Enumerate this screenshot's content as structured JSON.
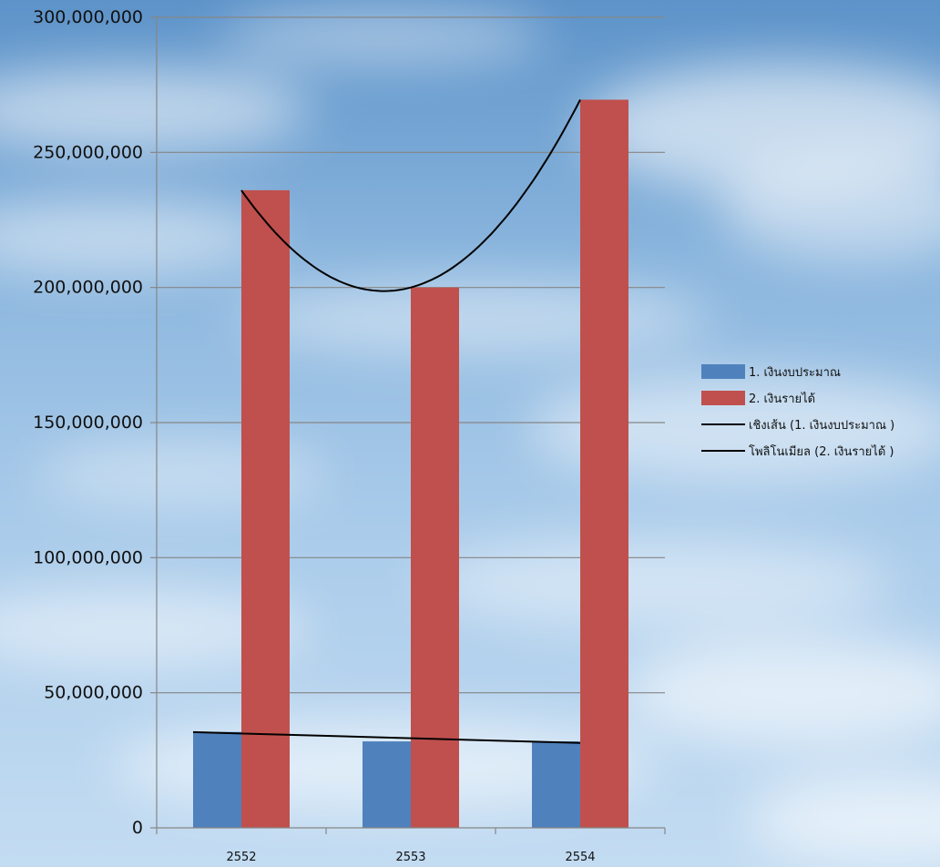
{
  "colors": {
    "series1": "#4f81bd",
    "series2": "#c0504d",
    "trendline": "#000000",
    "grid": "#868686"
  },
  "chart_data": {
    "type": "bar",
    "categories": [
      "2552",
      "2553",
      "2554"
    ],
    "series": [
      {
        "name": "1. เงินงบประมาณ",
        "values": [
          35500000,
          32000000,
          32000000
        ]
      },
      {
        "name": "2. เงินรายได้",
        "values": [
          236000000,
          200000000,
          269500000
        ]
      }
    ],
    "trendlines": [
      {
        "name": "เชิงเส้น (1. เงินงบประมาณ )",
        "kind": "linear",
        "of_series": 0
      },
      {
        "name": "โพลิโนเมียล (2. เงินรายได้ )",
        "kind": "polynomial",
        "of_series": 1
      }
    ],
    "yticks": [
      "0",
      "50,000,000",
      "100,000,000",
      "150,000,000",
      "200,000,000",
      "250,000,000",
      "300,000,000"
    ],
    "ylim": [
      0,
      300000000
    ],
    "grid": true,
    "legend_position": "right"
  },
  "legend": [
    {
      "label": "1. เงินงบประมาณ",
      "type": "bar",
      "color": "#4f81bd"
    },
    {
      "label": "2. เงินรายได้",
      "type": "bar",
      "color": "#c0504d"
    },
    {
      "label": "เชิงเส้น (1. เงินงบประมาณ )",
      "type": "line",
      "color": "#000000"
    },
    {
      "label": "โพลิโนเมียล (2. เงินรายได้ )",
      "type": "line",
      "color": "#000000"
    }
  ]
}
